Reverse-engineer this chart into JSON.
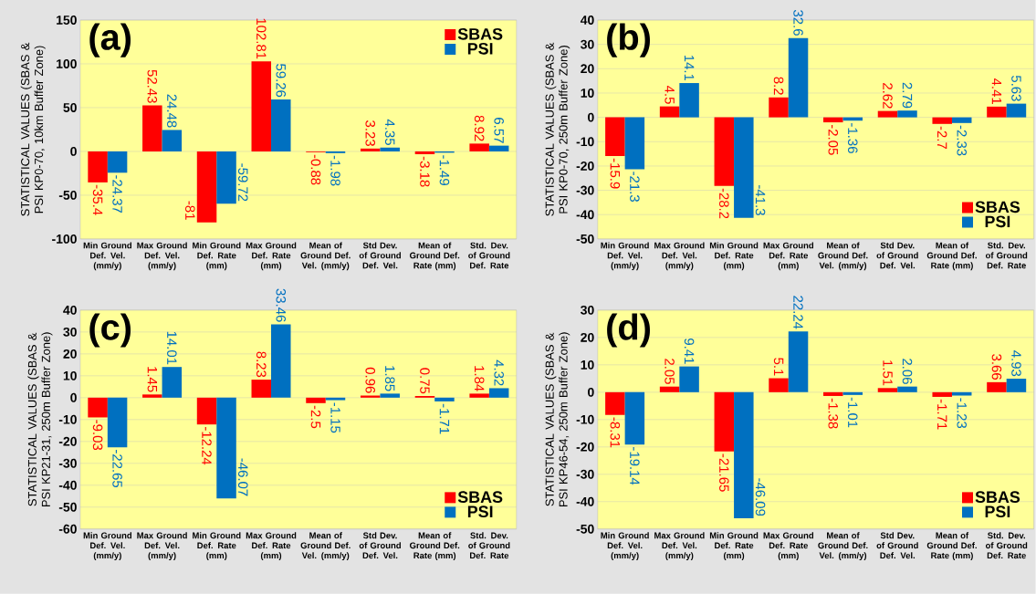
{
  "chart_data": [
    {
      "type": "bar",
      "title": "(a)",
      "ylabel": "STATISTICAL  VALUES (SBAS & PSI KP0-70, 10km Buffer Zone)",
      "categories": [
        "Min Ground Def. Vel. (mm/y)",
        "Max Ground Def. Vel. (mm/y)",
        "Min Ground Def. Rate (mm)",
        "Max Ground Def. Rate (mm)",
        "Mean of Ground Def. Vel. (mm/y)",
        "Std Dev. of Ground Def. Vel.",
        "Mean of Ground Def. Rate (mm)",
        "Std. Dev. of Ground Def. Rate"
      ],
      "series": [
        {
          "name": "SBAS",
          "color": "#ff0000",
          "values": [
            -35.4,
            52.43,
            -81,
            102.81,
            -0.88,
            3.23,
            -3.18,
            8.92
          ]
        },
        {
          "name": "PSI",
          "color": "#0070c0",
          "values": [
            -24.37,
            24.48,
            -59.72,
            59.26,
            -1.98,
            4.35,
            -1.49,
            6.57
          ]
        }
      ],
      "ylim": [
        -100,
        150
      ],
      "yticks": [
        -100,
        -50,
        0,
        50,
        100,
        150
      ],
      "grid": "y",
      "legend": "top right",
      "data_labels": true
    },
    {
      "type": "bar",
      "title": "(b)",
      "ylabel": "STATISTICAL  VALUES (SBAS & PSI KP0-70, 250m Buffer Zone)",
      "categories": [
        "Min Ground Def. Vel. (mm/y)",
        "Max Ground Def. Vel. (mm/y)",
        "Min Ground Def. Rate (mm)",
        "Max Ground Def. Rate (mm)",
        "Mean of Ground Def. Vel. (mm/y)",
        "Std Dev. of Ground Def. Vel.",
        "Mean of Ground Def. Rate (mm)",
        "Std. Dev. of Ground Def. Rate"
      ],
      "series": [
        {
          "name": "SBAS",
          "color": "#ff0000",
          "values": [
            -15.9,
            4.5,
            -28.2,
            8.2,
            -2.05,
            2.62,
            -2.7,
            4.41
          ]
        },
        {
          "name": "PSI",
          "color": "#0070c0",
          "values": [
            -21.3,
            14.1,
            -41.3,
            32.6,
            -1.36,
            2.79,
            -2.33,
            5.63
          ]
        }
      ],
      "ylim": [
        -50,
        40
      ],
      "yticks": [
        -50,
        -40,
        -30,
        -20,
        -10,
        0,
        10,
        20,
        30,
        40
      ],
      "grid": "y",
      "legend": "bottom right",
      "data_labels": true
    },
    {
      "type": "bar",
      "title": "(c)",
      "ylabel": "STATISTICAL  VALUES (SBAS & PSI KP21-31, 250m Buffer Zone)",
      "categories": [
        "Min Ground Def. Vel. (mm/y)",
        "Max Ground Def. Vel. (mm/y)",
        "Min Ground Def. Rate (mm)",
        "Max Ground Def. Rate (mm)",
        "Mean of Ground Def. Vel. (mm/y)",
        "Std Dev. of Ground Def. Vel.",
        "Mean of Ground Def. Rate (mm)",
        "Std. Dev. of Ground Def. Rate"
      ],
      "series": [
        {
          "name": "SBAS",
          "color": "#ff0000",
          "values": [
            -9.03,
            1.45,
            -12.24,
            8.23,
            -2.5,
            0.96,
            0.75,
            1.84
          ]
        },
        {
          "name": "PSI",
          "color": "#0070c0",
          "values": [
            -22.65,
            14.01,
            -46.07,
            33.46,
            -1.15,
            1.85,
            -1.71,
            4.32
          ]
        }
      ],
      "ylim": [
        -60,
        40
      ],
      "yticks": [
        -60,
        -50,
        -40,
        -30,
        -20,
        -10,
        0,
        10,
        20,
        30,
        40
      ],
      "grid": "y",
      "legend": "bottom right",
      "data_labels": true
    },
    {
      "type": "bar",
      "title": "(d)",
      "ylabel": "STATISTICAL  VALUES (SBAS & PSI KP46-54, 250m Buffer Zone)",
      "categories": [
        "Min Ground Def. Vel. (mm/y)",
        "Max Ground Def. Vel. (mm/y)",
        "Min Ground Def. Rate (mm)",
        "Max Ground Def. Rate (mm)",
        "Mean of Ground Def. Vel. (mm/y)",
        "Std Dev. of Ground Def. Vel.",
        "Mean of Ground Def. Rate (mm)",
        "Std. Dev. of Ground Def. Rate"
      ],
      "series": [
        {
          "name": "SBAS",
          "color": "#ff0000",
          "values": [
            -8.31,
            2.05,
            -21.65,
            5.1,
            -1.38,
            1.51,
            -1.71,
            3.66
          ]
        },
        {
          "name": "PSI",
          "color": "#0070c0",
          "values": [
            -19.14,
            9.41,
            -46.09,
            22.24,
            -1.01,
            2.06,
            -1.23,
            4.93
          ]
        }
      ],
      "ylim": [
        -50,
        30
      ],
      "yticks": [
        -50,
        -40,
        -30,
        -20,
        -10,
        0,
        10,
        20,
        30
      ],
      "grid": "y",
      "legend": "bottom right",
      "data_labels": true
    }
  ]
}
